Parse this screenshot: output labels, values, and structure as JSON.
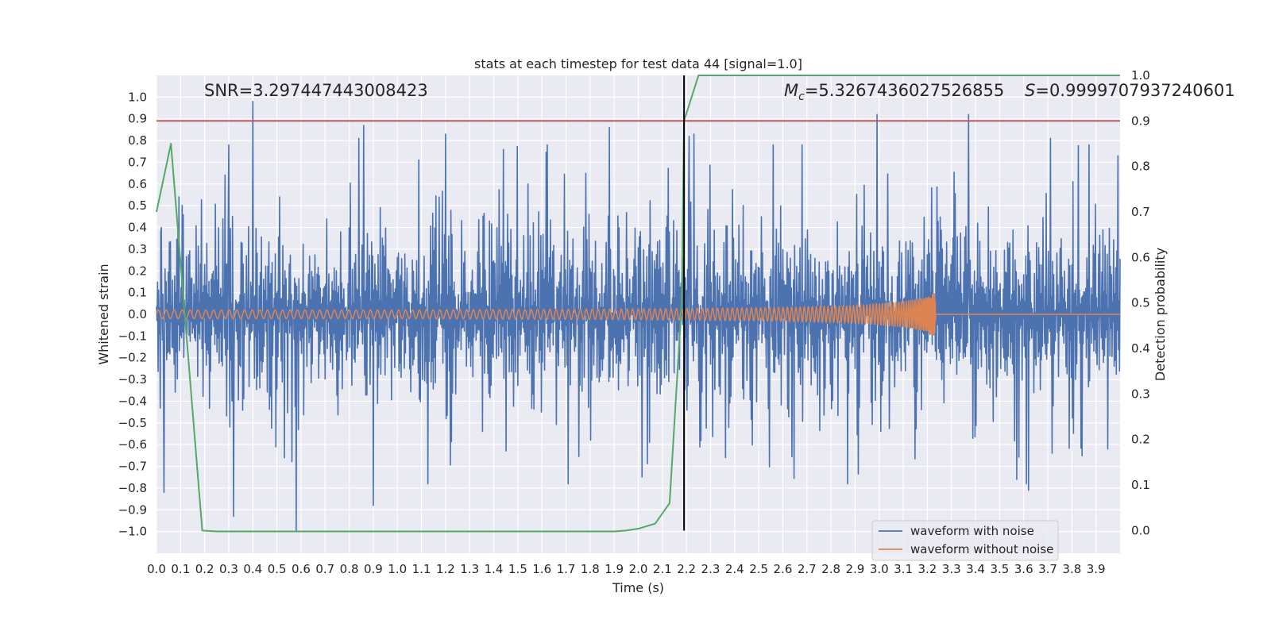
{
  "chart_data": {
    "type": "line",
    "title": "stats at each timestep for test data 44 [signal=1.0]",
    "xlabel": "Time (s)",
    "ylabel": "Whitened strain",
    "y2label": "Detection probability",
    "xlim": [
      0.0,
      4.0
    ],
    "ylim": [
      -1.1,
      1.1
    ],
    "y2lim": [
      -0.05,
      1.0
    ],
    "x_ticks": [
      0.0,
      0.1,
      0.2,
      0.3,
      0.4,
      0.5,
      0.6,
      0.7,
      0.8,
      0.9,
      1.0,
      1.1,
      1.2,
      1.3,
      1.4,
      1.5,
      1.6,
      1.7,
      1.8,
      1.9,
      2.0,
      2.1,
      2.2,
      2.3,
      2.4,
      2.5,
      2.6,
      2.7,
      2.8,
      2.9,
      3.0,
      3.1,
      3.2,
      3.3,
      3.4,
      3.5,
      3.6,
      3.7,
      3.8,
      3.9
    ],
    "y_ticks": [
      -1.0,
      -0.9,
      -0.8,
      -0.7,
      -0.6,
      -0.5,
      -0.4,
      -0.3,
      -0.2,
      -0.1,
      0.0,
      0.1,
      0.2,
      0.3,
      0.4,
      0.5,
      0.6,
      0.7,
      0.8,
      0.9,
      1.0
    ],
    "y2_ticks": [
      0.0,
      0.1,
      0.2,
      0.3,
      0.4,
      0.5,
      0.6,
      0.7,
      0.8,
      0.9,
      1.0
    ],
    "grid": true,
    "legend_position": "lower-right",
    "annotations": {
      "snr": "SNR=3.297447443008423",
      "mc_symbol": "M",
      "mc_sub": "c",
      "mc_value": "=5.3267436027526855",
      "s_symbol": "S",
      "s_value": "=0.9999707937240601"
    },
    "threshold": {
      "axis": "right",
      "value": 0.9,
      "color": "#c44e52"
    },
    "marker_time": {
      "x": 2.19,
      "color": "#000000"
    },
    "series": [
      {
        "name": "waveform with noise",
        "axis": "left",
        "color": "#4c72b0",
        "note_peaks": {
          "x": [
            0.02,
            0.03,
            0.3,
            0.32,
            0.4,
            0.58,
            0.84,
            0.86,
            0.9,
            1.2,
            1.88,
            2.21,
            2.23,
            2.99,
            3.37,
            3.57,
            3.62,
            3.71,
            3.99
          ],
          "y": [
            0.4,
            -0.82,
            0.78,
            -0.93,
            0.98,
            -1.0,
            0.81,
            0.87,
            -0.88,
            0.83,
            0.86,
            0.82,
            0.83,
            0.92,
            0.92,
            -0.76,
            -0.81,
            0.81,
            0.73
          ]
        }
      },
      {
        "name": "waveform without noise",
        "axis": "left",
        "color": "#dd8452",
        "amplitude_envelope": {
          "x": [
            0.0,
            1.0,
            2.0,
            2.5,
            2.9,
            3.1,
            3.2,
            3.23,
            3.24,
            4.0
          ],
          "y": [
            0.02,
            0.02,
            0.025,
            0.03,
            0.04,
            0.06,
            0.08,
            0.1,
            0.0,
            0.0
          ]
        }
      },
      {
        "name": "detection probability",
        "axis": "right",
        "color": "#55a868",
        "x": [
          0.0,
          0.06,
          0.19,
          0.25,
          0.5,
          1.0,
          1.5,
          1.9,
          1.95,
          2.0,
          2.07,
          2.13,
          2.18,
          2.19,
          2.22,
          2.25,
          4.0
        ],
        "y": [
          0.7,
          0.85,
          0.0,
          -0.002,
          -0.002,
          -0.002,
          -0.002,
          -0.002,
          0.0,
          0.004,
          0.015,
          0.06,
          0.5,
          0.9,
          0.95,
          1.0,
          1.0
        ]
      }
    ]
  }
}
